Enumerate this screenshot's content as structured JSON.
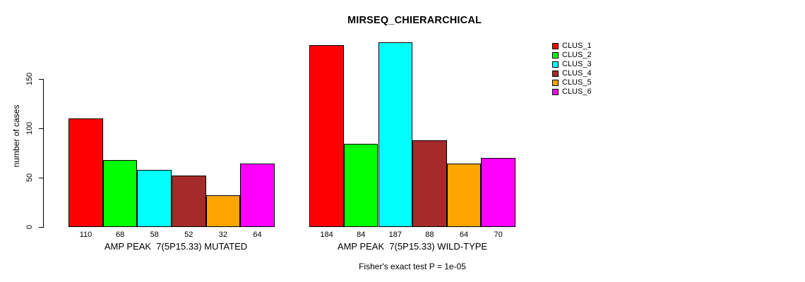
{
  "chart_data": {
    "type": "bar",
    "title": "MIRSEQ_CHIERARCHICAL",
    "ylabel": "number of cases",
    "xlabel": "",
    "ylim": [
      0,
      150
    ],
    "yticks": [
      0,
      50,
      100,
      150
    ],
    "grid": false,
    "bars_exceed_axis_max": true,
    "bar_value_labels_shown": true,
    "annotation": "Fisher's exact test P = 1e-05",
    "background_color": "#FFFFFF",
    "bar_edge_color": "#000000",
    "text_color": "#000000",
    "legend": {
      "position": "top-right",
      "entries": [
        {
          "label": "CLUS_1",
          "color": "#FF0000"
        },
        {
          "label": "CLUS_2",
          "color": "#00FF00"
        },
        {
          "label": "CLUS_3",
          "color": "#00FFFF"
        },
        {
          "label": "CLUS_4",
          "color": "#A52A2A"
        },
        {
          "label": "CLUS_5",
          "color": "#FFA500"
        },
        {
          "label": "CLUS_6",
          "color": "#FF00FF"
        }
      ]
    },
    "groups": [
      {
        "label": "AMP PEAK  7(5P15.33) MUTATED",
        "values": [
          110,
          68,
          58,
          52,
          32,
          64
        ]
      },
      {
        "label": "AMP PEAK  7(5P15.33) WILD-TYPE",
        "values": [
          184,
          84,
          187,
          88,
          64,
          70
        ]
      }
    ]
  }
}
